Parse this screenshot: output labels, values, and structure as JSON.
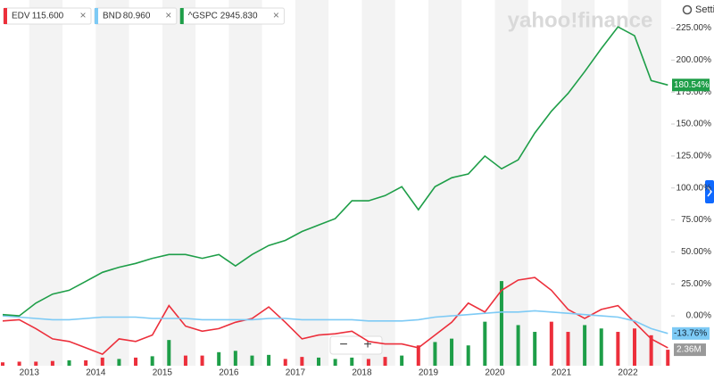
{
  "chart_data": {
    "type": "line",
    "x": [
      2012.6,
      2012.85,
      2013.1,
      2013.35,
      2013.6,
      2013.85,
      2014.1,
      2014.35,
      2014.6,
      2014.85,
      2015.1,
      2015.35,
      2015.6,
      2015.85,
      2016.1,
      2016.35,
      2016.6,
      2016.85,
      2017.1,
      2017.35,
      2017.6,
      2017.85,
      2018.1,
      2018.35,
      2018.6,
      2018.85,
      2019.1,
      2019.35,
      2019.6,
      2019.85,
      2020.1,
      2020.35,
      2020.6,
      2020.85,
      2021.1,
      2021.35,
      2021.6,
      2021.85,
      2022.1,
      2022.35,
      2022.6
    ],
    "xlim": [
      2012.56,
      2022.65
    ],
    "xticks": [
      2013,
      2014,
      2015,
      2016,
      2017,
      2018,
      2019,
      2020,
      2021,
      2022
    ],
    "ylim": [
      -39,
      247
    ],
    "yticks": [
      {
        "value": 0,
        "label": "0.00%"
      },
      {
        "value": 25,
        "label": "25.00%"
      },
      {
        "value": 50,
        "label": "50.00%"
      },
      {
        "value": 75,
        "label": "75.00%"
      },
      {
        "value": 100,
        "label": "100.00%"
      },
      {
        "value": 125,
        "label": "125.00%"
      },
      {
        "value": 150,
        "label": "150.00%"
      },
      {
        "value": 175,
        "label": "175.00%"
      },
      {
        "value": 200,
        "label": "200.00%"
      },
      {
        "value": 225,
        "label": "225.00%"
      }
    ],
    "series": [
      {
        "name": "EDV",
        "quote": "115.600",
        "color": "#ec2f3b",
        "values": [
          -4,
          -3,
          -10,
          -18,
          -20,
          -25,
          -30,
          -18,
          -20,
          -15,
          8,
          -8,
          -12,
          -10,
          -5,
          -2,
          7,
          -5,
          -18,
          -15,
          -14,
          -12,
          -20,
          -22,
          -22,
          -25,
          -15,
          -5,
          10,
          3,
          20,
          28,
          30,
          20,
          5,
          -2,
          5,
          8,
          -5,
          -18,
          -25
        ]
      },
      {
        "name": "BND",
        "quote": "80.960",
        "color": "#7dcaf5",
        "values": [
          0,
          -1,
          -2,
          -3,
          -3,
          -2,
          -1,
          -1,
          -1,
          -2,
          -2,
          -2,
          -3,
          -3,
          -3,
          -3,
          -2,
          -2,
          -3,
          -3,
          -3,
          -3,
          -4,
          -4,
          -4,
          -3,
          -1,
          0,
          1,
          2,
          3,
          3,
          4,
          3,
          2,
          1,
          0,
          -1,
          -4,
          -10,
          -13.76
        ],
        "last_label": {
          "value": -13.76,
          "label": "-13.76%"
        }
      },
      {
        "name": "^GSPC",
        "quote": "2945.830",
        "color": "#1e9e48",
        "values": [
          1,
          0,
          10,
          17,
          20,
          27,
          34,
          38,
          41,
          45,
          48,
          48,
          45,
          48,
          39,
          48,
          55,
          59,
          66,
          71,
          76,
          90,
          90,
          94,
          101,
          83,
          101,
          108,
          111,
          125,
          115,
          122,
          143,
          160,
          174,
          191,
          209,
          226,
          219,
          184,
          180.54
        ],
        "last_label": {
          "value": 180.54,
          "label": "180.54%"
        }
      }
    ],
    "volume": {
      "ylim": [
        0,
        54
      ],
      "label": {
        "value": 2.36,
        "label": "2.36M"
      },
      "values": [
        0.5,
        0.6,
        0.6,
        0.7,
        0.8,
        0.8,
        1.2,
        1.0,
        1.2,
        1.4,
        3.8,
        1.5,
        1.5,
        2.0,
        2.2,
        1.5,
        1.6,
        1.0,
        1.3,
        1.2,
        1.0,
        1.2,
        1.0,
        1.3,
        1.5,
        3.0,
        3.5,
        4.0,
        3.0,
        6.5,
        12.5,
        6.0,
        5.0,
        6.5,
        5.0,
        6.0,
        5.5,
        5.0,
        5.5,
        4.5,
        2.36
      ],
      "colors": [
        "#ec2f3b",
        "#ec2f3b",
        "#ec2f3b",
        "#ec2f3b",
        "#1e9e48",
        "#ec2f3b",
        "#ec2f3b",
        "#1e9e48",
        "#ec2f3b",
        "#1e9e48",
        "#1e9e48",
        "#ec2f3b",
        "#ec2f3b",
        "#1e9e48",
        "#1e9e48",
        "#1e9e48",
        "#1e9e48",
        "#ec2f3b",
        "#ec2f3b",
        "#1e9e48",
        "#1e9e48",
        "#1e9e48",
        "#ec2f3b",
        "#ec2f3b",
        "#1e9e48",
        "#ec2f3b",
        "#1e9e48",
        "#1e9e48",
        "#1e9e48",
        "#1e9e48",
        "#1e9e48",
        "#1e9e48",
        "#1e9e48",
        "#ec2f3b",
        "#ec2f3b",
        "#1e9e48",
        "#1e9e48",
        "#ec2f3b",
        "#ec2f3b",
        "#ec2f3b",
        "#ec2f3b"
      ]
    },
    "shading": true
  },
  "ui": {
    "logo": "yahoo!finance",
    "settings": "Settin",
    "close": "×",
    "zoom_out": "−",
    "zoom_in": "+"
  }
}
